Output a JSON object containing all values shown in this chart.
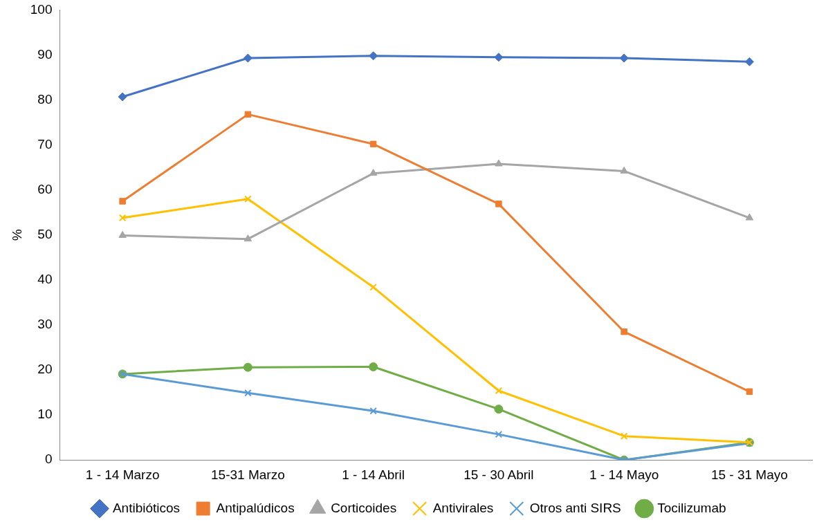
{
  "chart_data": {
    "type": "line",
    "ylabel": "%",
    "categories": [
      "1 - 14 Marzo",
      "15-31 Marzo",
      "1 - 14 Abril",
      "15 - 30 Abril",
      "1 - 14 Mayo",
      "15 - 31 Mayo"
    ],
    "ylim": [
      0,
      100
    ],
    "yticks": [
      0,
      10,
      20,
      30,
      40,
      50,
      60,
      70,
      80,
      90,
      100
    ],
    "grid": false,
    "legend": "bottom",
    "series": [
      {
        "name": "Antibióticos",
        "color": "#4472c4",
        "marker": "diamond",
        "values": [
          80.7,
          89.3,
          89.8,
          89.5,
          89.3,
          88.5
        ]
      },
      {
        "name": "Antipalúdicos",
        "color": "#ed7d31",
        "marker": "square",
        "values": [
          57.5,
          76.8,
          70.2,
          56.9,
          28.5,
          15.2
        ]
      },
      {
        "name": "Corticoides",
        "color": "#a5a5a5",
        "marker": "triangle",
        "values": [
          49.9,
          49.1,
          63.7,
          65.8,
          64.2,
          53.8
        ]
      },
      {
        "name": "Antivirales",
        "color": "#ffc000",
        "marker": "cross",
        "values": [
          53.8,
          58.0,
          38.4,
          15.4,
          5.3,
          3.9
        ]
      },
      {
        "name": "Otros anti SIRS",
        "color": "#5b9bd5",
        "marker": "cross",
        "values": [
          19.1,
          14.9,
          10.9,
          5.7,
          0,
          3.7
        ]
      },
      {
        "name": "Tocilizumab",
        "color": "#70ad47",
        "marker": "circle",
        "values": [
          19.1,
          20.6,
          20.7,
          11.3,
          0,
          3.9
        ]
      }
    ]
  }
}
